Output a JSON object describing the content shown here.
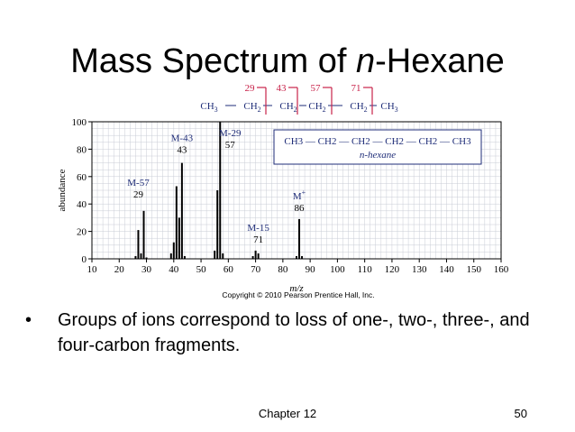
{
  "slide": {
    "title_main": "Mass Spectrum of ",
    "title_italic": "n",
    "title_end": "-Hexane",
    "bullet": "•",
    "bullet_text": "Groups of ions correspond to loss of one-, two-, three-, and four-carbon fragments.",
    "footer_chapter": "Chapter 12",
    "footer_page": "50",
    "copyright": "Copyright © 2010 Pearson Prentice Hall, Inc."
  },
  "structure": {
    "fragment_labels": [
      "29",
      "43",
      "57",
      "71"
    ],
    "chain": [
      "CH3",
      "CH2",
      "CH2",
      "CH2",
      "CH2",
      "CH3"
    ],
    "inset_formula": "CH3 — CH2 — CH2 — CH2 — CH2 — CH3",
    "inset_name": "n-hexane",
    "colors": {
      "fragment": "#c8234a",
      "chain": "#1f2d78"
    }
  },
  "chart_data": {
    "type": "bar",
    "xlabel": "m/z",
    "ylabel": "abundance",
    "xlim": [
      10,
      160
    ],
    "ylim": [
      0,
      100
    ],
    "x_ticks": [
      10,
      20,
      30,
      40,
      50,
      60,
      70,
      80,
      90,
      100,
      110,
      120,
      130,
      140,
      150,
      160
    ],
    "y_ticks": [
      0,
      20,
      40,
      60,
      80,
      100
    ],
    "grid": true,
    "peaks": [
      {
        "x": 26,
        "y": 2
      },
      {
        "x": 27,
        "y": 21
      },
      {
        "x": 28,
        "y": 4
      },
      {
        "x": 29,
        "y": 35
      },
      {
        "x": 30,
        "y": 1
      },
      {
        "x": 39,
        "y": 4
      },
      {
        "x": 40,
        "y": 12
      },
      {
        "x": 41,
        "y": 53
      },
      {
        "x": 42,
        "y": 30
      },
      {
        "x": 43,
        "y": 70
      },
      {
        "x": 44,
        "y": 2
      },
      {
        "x": 55,
        "y": 6
      },
      {
        "x": 56,
        "y": 50
      },
      {
        "x": 57,
        "y": 100
      },
      {
        "x": 58,
        "y": 4
      },
      {
        "x": 69,
        "y": 2
      },
      {
        "x": 70,
        "y": 6
      },
      {
        "x": 71,
        "y": 4
      },
      {
        "x": 85,
        "y": 2
      },
      {
        "x": 86,
        "y": 29
      },
      {
        "x": 87,
        "y": 2
      }
    ],
    "annotations": [
      {
        "x": 29,
        "y": 35,
        "label": "M-57",
        "value": "29"
      },
      {
        "x": 43,
        "y": 70,
        "label": "M-43",
        "value": "43"
      },
      {
        "x": 57,
        "y": 100,
        "label": "M-29",
        "value": "57"
      },
      {
        "x": 71,
        "y": 6,
        "label": "M-15",
        "value": "71"
      },
      {
        "x": 86,
        "y": 29,
        "label": "M+",
        "value": "86"
      }
    ]
  }
}
